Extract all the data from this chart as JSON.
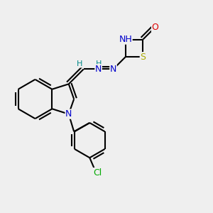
{
  "background_color": "#efefef",
  "atom_colors": {
    "C": "#000000",
    "N": "#0000cc",
    "O": "#dd0000",
    "S": "#aaaa00",
    "Cl": "#00aa00",
    "H": "#008888"
  },
  "bond_color": "#000000",
  "bond_width": 1.5,
  "font_size": 9
}
